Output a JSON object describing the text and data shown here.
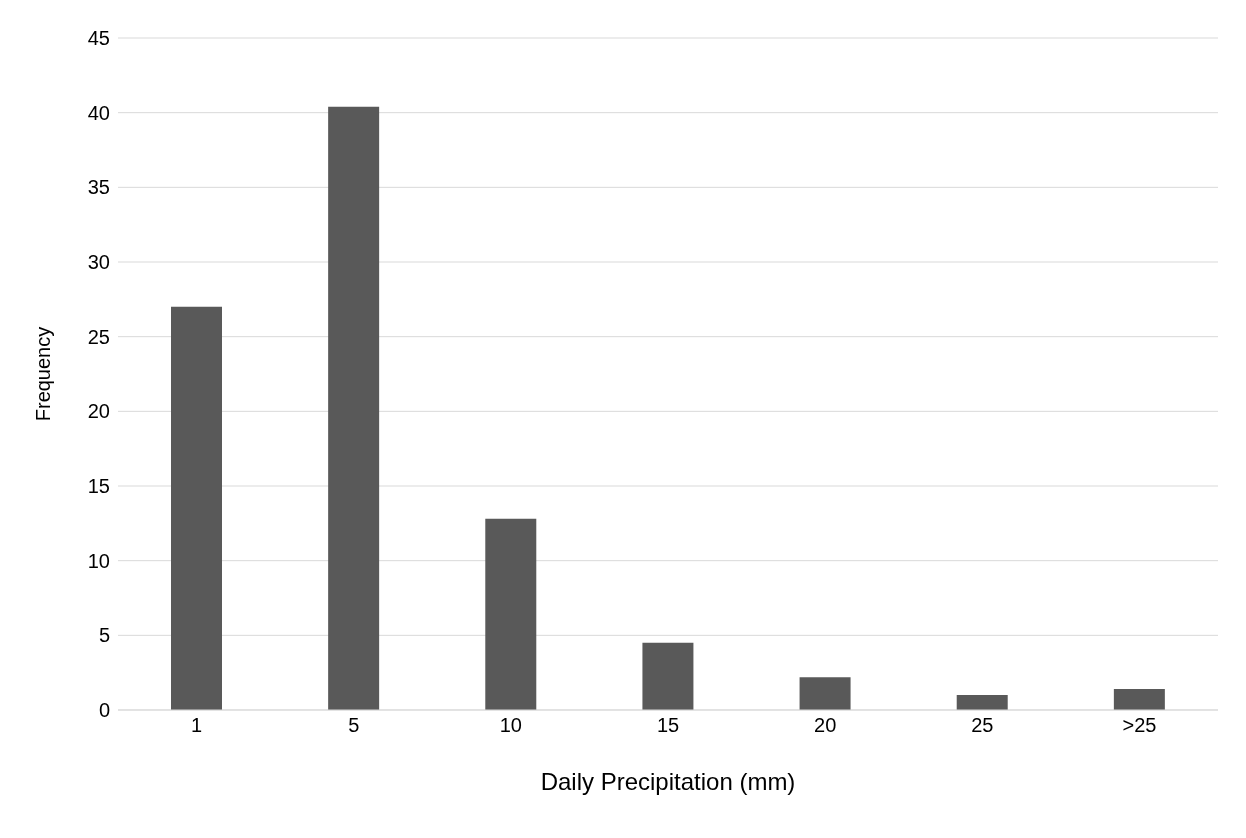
{
  "chart_data": {
    "type": "bar",
    "xlabel": "Daily Precipitation (mm)",
    "ylabel": "Frequency",
    "categories": [
      "1",
      "5",
      "10",
      "15",
      "20",
      "25",
      ">25"
    ],
    "values": [
      27,
      40.4,
      12.8,
      4.5,
      2.2,
      1.0,
      1.4
    ],
    "color": "#595959",
    "ylim": [
      0,
      45
    ],
    "yticks": [
      0,
      5,
      10,
      15,
      20,
      25,
      30,
      35,
      40,
      45
    ],
    "grid": "y"
  }
}
